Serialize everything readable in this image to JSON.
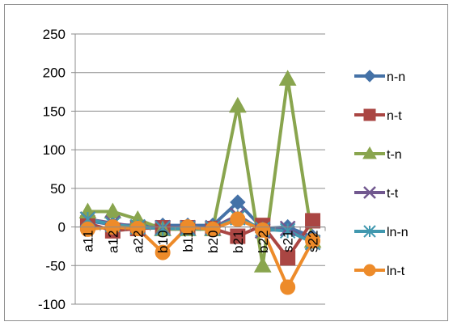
{
  "chart_data": {
    "type": "line",
    "categories": [
      "a11",
      "a12",
      "a22",
      "b10",
      "b11",
      "b20",
      "b21",
      "b22",
      "s21",
      "s22"
    ],
    "ylim": [
      -100,
      250
    ],
    "yticks": [
      -100,
      -50,
      0,
      50,
      100,
      150,
      200,
      250
    ],
    "grid": true,
    "legend": "right",
    "series": [
      {
        "name": "n-n",
        "color": "#4572a7",
        "marker": "diamond",
        "values": [
          8,
          3,
          2,
          2,
          2,
          2,
          32,
          -2,
          0,
          -13
        ]
      },
      {
        "name": "n-t",
        "color": "#aa4643",
        "marker": "square",
        "values": [
          5,
          -5,
          -2,
          -1,
          -1,
          -2,
          -12,
          2,
          -40,
          8
        ]
      },
      {
        "name": "t-n",
        "color": "#89a54e",
        "marker": "triangle",
        "values": [
          20,
          20,
          10,
          -3,
          -3,
          -3,
          157,
          -50,
          192,
          -18
        ]
      },
      {
        "name": "t-t",
        "color": "#71588f",
        "marker": "x",
        "values": [
          10,
          5,
          0,
          -1,
          -1,
          -1,
          15,
          -5,
          -2,
          -20
        ]
      },
      {
        "name": "ln-n",
        "color": "#4198af",
        "marker": "star",
        "values": [
          10,
          3,
          0,
          -2,
          -2,
          -2,
          12,
          -3,
          -5,
          -20
        ]
      },
      {
        "name": "ln-t",
        "color": "#ed8b2a",
        "marker": "circle",
        "values": [
          -3,
          0,
          -2,
          -33,
          0,
          -3,
          10,
          -4,
          -78,
          -18
        ]
      }
    ]
  }
}
